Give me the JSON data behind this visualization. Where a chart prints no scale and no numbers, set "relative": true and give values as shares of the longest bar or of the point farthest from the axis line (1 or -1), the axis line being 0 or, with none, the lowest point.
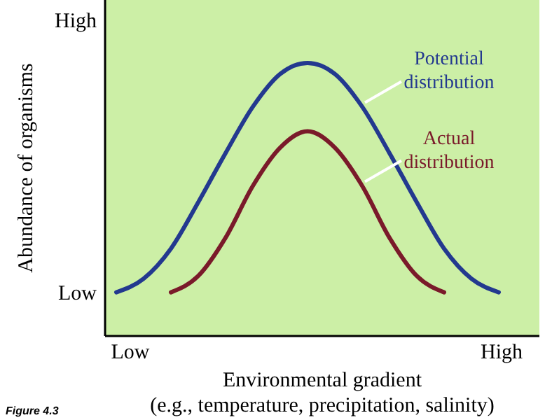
{
  "chart_data": {
    "type": "line",
    "relative": true,
    "xlabel": "Environmental gradient\n(e.g., temperature, precipitation, salinity)",
    "ylabel": "Abundance of organisms",
    "categories": [
      null,
      null,
      null,
      null,
      null,
      null,
      null,
      null,
      null,
      null,
      null,
      null,
      null,
      null,
      null
    ],
    "legend": false,
    "marker": "none",
    "line_style": "solid",
    "series": [
      {
        "name": "Potential distribution",
        "color": "#23398f",
        "values": [
          0.16,
          0.21,
          0.32,
          0.49,
          0.67,
          0.84,
          0.96,
          1,
          0.96,
          0.84,
          0.67,
          0.49,
          0.32,
          0.21,
          0.16
        ]
      },
      {
        "name": "Actual distribution",
        "color": "#7a1a2a",
        "values": [
          null,
          null,
          0.16,
          0.22,
          0.36,
          0.55,
          0.69,
          0.75,
          0.69,
          0.55,
          0.36,
          0.22,
          0.16,
          null,
          null
        ]
      }
    ],
    "annotations": [
      "High",
      "Low",
      "Low",
      "High",
      "Figure 4.3"
    ]
  }
}
